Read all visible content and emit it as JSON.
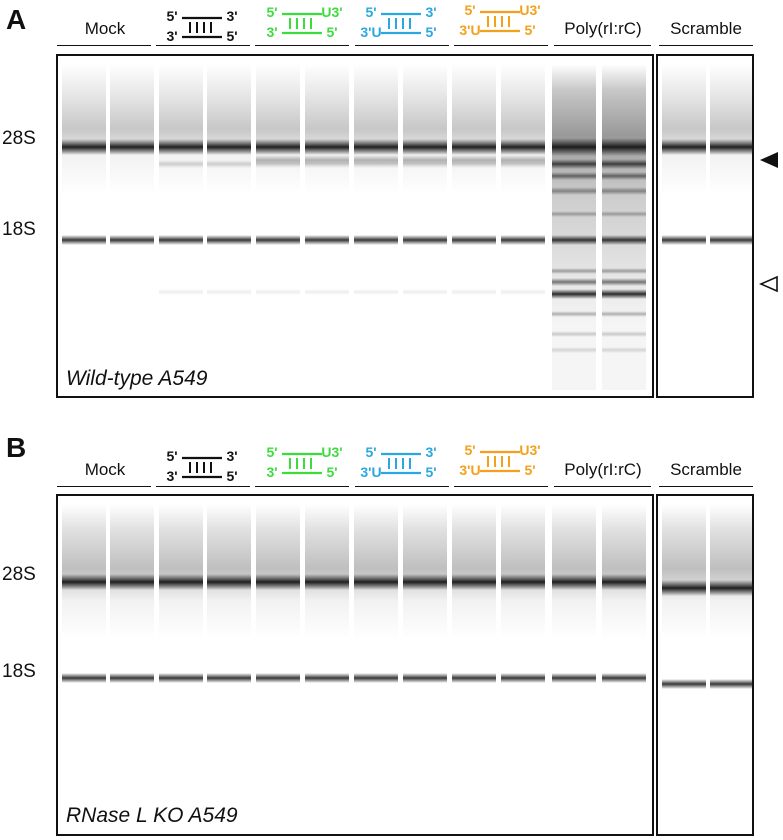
{
  "panels": [
    {
      "letter": "A",
      "caption": "Wild-type A549",
      "markers": {
        "upper": "28S",
        "lower": "18S"
      },
      "arrowheads": [
        "filled-triangle",
        "open-triangle"
      ]
    },
    {
      "letter": "B",
      "caption": "RNase L KO A549",
      "markers": {
        "upper": "28S",
        "lower": "18S"
      }
    }
  ],
  "groups": {
    "mock": "Mock",
    "poly": "Poly(rI:rC)",
    "scramble": "Scramble"
  },
  "duplexes": [
    {
      "color": "#111111",
      "top": [
        "5'",
        "3'"
      ],
      "bottom": [
        "3'",
        "5'"
      ]
    },
    {
      "color": "#3ddc3d",
      "top": [
        "5'",
        "U3'"
      ],
      "bottom": [
        "3'",
        "5'"
      ]
    },
    {
      "color": "#2aa7e0",
      "top": [
        "5'",
        "3'"
      ],
      "bottom": [
        "3'U",
        "5'"
      ]
    },
    {
      "color": "#f3a01c",
      "top": [
        "5'",
        "U3'"
      ],
      "bottom": [
        "3'U",
        "5'"
      ]
    }
  ],
  "colors": {
    "band": "#1a1a1a",
    "frame": "#111111"
  }
}
